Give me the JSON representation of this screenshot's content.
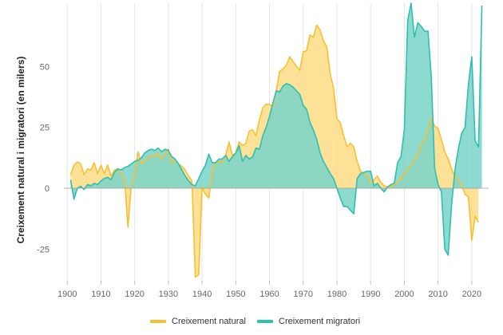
{
  "chart_data": {
    "type": "area",
    "title": "",
    "xlabel": "",
    "ylabel": "Creixement natural i migratori (en milers)",
    "xlim": [
      1899,
      2025
    ],
    "ylim": [
      -38,
      76
    ],
    "x_ticks": [
      1900,
      1910,
      1920,
      1930,
      1940,
      1950,
      1960,
      1970,
      1980,
      1990,
      2000,
      2010,
      2020
    ],
    "y_ticks": [
      -25,
      0,
      25,
      50
    ],
    "y_tick_labels": [
      "-25",
      "0",
      "25",
      "50"
    ],
    "grid": "vertical",
    "legend_position": "bottom",
    "series": [
      {
        "name": "Creixement natural",
        "color": "#f7c030",
        "fill": "#fbdc85",
        "points": [
          [
            1901,
            5.5
          ],
          [
            1902,
            9.5
          ],
          [
            1903,
            10.8
          ],
          [
            1904,
            10
          ],
          [
            1905,
            5.5
          ],
          [
            1906,
            8
          ],
          [
            1907,
            7.5
          ],
          [
            1908,
            10.5
          ],
          [
            1909,
            6
          ],
          [
            1910,
            9.5
          ],
          [
            1911,
            6
          ],
          [
            1912,
            9.5
          ],
          [
            1913,
            5
          ],
          [
            1914,
            7.5
          ],
          [
            1915,
            7.8
          ],
          [
            1916,
            6
          ],
          [
            1917,
            4
          ],
          [
            1918,
            -16
          ],
          [
            1919,
            1
          ],
          [
            1920,
            6
          ],
          [
            1921,
            15
          ],
          [
            1922,
            10
          ],
          [
            1923,
            11
          ],
          [
            1924,
            12.5
          ],
          [
            1925,
            13.5
          ],
          [
            1926,
            13
          ],
          [
            1927,
            14.5
          ],
          [
            1928,
            12
          ],
          [
            1929,
            14
          ],
          [
            1930,
            16
          ],
          [
            1931,
            10.5
          ],
          [
            1932,
            11.5
          ],
          [
            1933,
            10
          ],
          [
            1934,
            9
          ],
          [
            1935,
            7.5
          ],
          [
            1936,
            5
          ],
          [
            1937,
            3
          ],
          [
            1938,
            -36.5
          ],
          [
            1939,
            -35.5
          ],
          [
            1940,
            0.5
          ],
          [
            1941,
            -2.5
          ],
          [
            1942,
            -4
          ],
          [
            1943,
            7.5
          ],
          [
            1944,
            10.5
          ],
          [
            1945,
            11
          ],
          [
            1946,
            10.5
          ],
          [
            1947,
            13.5
          ],
          [
            1948,
            19
          ],
          [
            1949,
            13.5
          ],
          [
            1950,
            14.5
          ],
          [
            1951,
            19
          ],
          [
            1952,
            17.5
          ],
          [
            1953,
            18.5
          ],
          [
            1954,
            23.5
          ],
          [
            1955,
            24
          ],
          [
            1956,
            21.5
          ],
          [
            1957,
            28
          ],
          [
            1958,
            33
          ],
          [
            1959,
            34.5
          ],
          [
            1960,
            34.5
          ],
          [
            1961,
            33.5
          ],
          [
            1962,
            40
          ],
          [
            1963,
            48
          ],
          [
            1964,
            49
          ],
          [
            1965,
            50.5
          ],
          [
            1966,
            54
          ],
          [
            1967,
            52
          ],
          [
            1968,
            50
          ],
          [
            1969,
            48.5
          ],
          [
            1970,
            56
          ],
          [
            1971,
            56.5
          ],
          [
            1972,
            63
          ],
          [
            1973,
            62
          ],
          [
            1974,
            67
          ],
          [
            1975,
            65
          ],
          [
            1976,
            60.5
          ],
          [
            1977,
            58
          ],
          [
            1978,
            47
          ],
          [
            1979,
            41
          ],
          [
            1980,
            28.5
          ],
          [
            1981,
            27
          ],
          [
            1982,
            21.5
          ],
          [
            1983,
            17
          ],
          [
            1984,
            18.5
          ],
          [
            1985,
            17
          ],
          [
            1986,
            11
          ],
          [
            1987,
            7
          ],
          [
            1988,
            6
          ],
          [
            1989,
            5.5
          ],
          [
            1990,
            2
          ],
          [
            1991,
            3.5
          ],
          [
            1992,
            5
          ],
          [
            1993,
            2.5
          ],
          [
            1994,
            1
          ],
          [
            1995,
            0.5
          ],
          [
            1996,
            0.8
          ],
          [
            1997,
            1.5
          ],
          [
            1998,
            2.5
          ],
          [
            1999,
            4
          ],
          [
            2000,
            6
          ],
          [
            2001,
            8
          ],
          [
            2002,
            9.5
          ],
          [
            2003,
            12
          ],
          [
            2004,
            14
          ],
          [
            2005,
            18.5
          ],
          [
            2006,
            19.5
          ],
          [
            2007,
            24.5
          ],
          [
            2008,
            29
          ],
          [
            2009,
            25.5
          ],
          [
            2010,
            24.5
          ],
          [
            2011,
            20
          ],
          [
            2012,
            15
          ],
          [
            2013,
            12
          ],
          [
            2014,
            8
          ],
          [
            2015,
            5
          ],
          [
            2016,
            3.5
          ],
          [
            2017,
            1.5
          ],
          [
            2018,
            -2.5
          ],
          [
            2019,
            -3.5
          ],
          [
            2020,
            -21.5
          ],
          [
            2021,
            -11.5
          ],
          [
            2022,
            -14
          ]
        ]
      },
      {
        "name": "Creixement migratori",
        "color": "#2fbfb0",
        "fill": "#79d4c9",
        "points": [
          [
            1901,
            3.5
          ],
          [
            1902,
            -4.5
          ],
          [
            1903,
            0
          ],
          [
            1904,
            0.8
          ],
          [
            1905,
            -0.5
          ],
          [
            1906,
            1.5
          ],
          [
            1907,
            1
          ],
          [
            1908,
            2
          ],
          [
            1909,
            1.5
          ],
          [
            1910,
            3
          ],
          [
            1911,
            4
          ],
          [
            1912,
            4.5
          ],
          [
            1913,
            3.5
          ],
          [
            1914,
            6.5
          ],
          [
            1915,
            8
          ],
          [
            1916,
            7.5
          ],
          [
            1917,
            8.5
          ],
          [
            1918,
            9
          ],
          [
            1919,
            10
          ],
          [
            1920,
            11
          ],
          [
            1921,
            11.5
          ],
          [
            1922,
            12.5
          ],
          [
            1923,
            14.5
          ],
          [
            1924,
            15.5
          ],
          [
            1925,
            16
          ],
          [
            1926,
            15.5
          ],
          [
            1927,
            16.5
          ],
          [
            1928,
            15
          ],
          [
            1929,
            16
          ],
          [
            1930,
            15.5
          ],
          [
            1931,
            13
          ],
          [
            1932,
            12
          ],
          [
            1933,
            10
          ],
          [
            1934,
            7.5
          ],
          [
            1935,
            5
          ],
          [
            1936,
            3
          ],
          [
            1937,
            1.5
          ],
          [
            1938,
            1
          ],
          [
            1939,
            4
          ],
          [
            1940,
            7
          ],
          [
            1941,
            9.5
          ],
          [
            1942,
            14
          ],
          [
            1943,
            10.5
          ],
          [
            1944,
            10.5
          ],
          [
            1945,
            12
          ],
          [
            1946,
            12
          ],
          [
            1947,
            13.5
          ],
          [
            1948,
            11
          ],
          [
            1949,
            13
          ],
          [
            1950,
            14.5
          ],
          [
            1951,
            17.5
          ],
          [
            1952,
            11
          ],
          [
            1953,
            13.5
          ],
          [
            1954,
            12
          ],
          [
            1955,
            13
          ],
          [
            1956,
            16.5
          ],
          [
            1957,
            16
          ],
          [
            1958,
            21.5
          ],
          [
            1959,
            25
          ],
          [
            1960,
            29.5
          ],
          [
            1961,
            35
          ],
          [
            1962,
            40
          ],
          [
            1963,
            39.5
          ],
          [
            1964,
            42
          ],
          [
            1965,
            43
          ],
          [
            1966,
            42.5
          ],
          [
            1967,
            41.5
          ],
          [
            1968,
            40
          ],
          [
            1969,
            38.5
          ],
          [
            1970,
            34
          ],
          [
            1971,
            32.5
          ],
          [
            1972,
            27
          ],
          [
            1973,
            24
          ],
          [
            1974,
            20
          ],
          [
            1975,
            14.5
          ],
          [
            1976,
            11
          ],
          [
            1977,
            8.5
          ],
          [
            1978,
            6
          ],
          [
            1979,
            4
          ],
          [
            1980,
            0
          ],
          [
            1981,
            -4
          ],
          [
            1982,
            -7.5
          ],
          [
            1983,
            -7.5
          ],
          [
            1984,
            -9
          ],
          [
            1985,
            -10.5
          ],
          [
            1986,
            4
          ],
          [
            1987,
            6
          ],
          [
            1988,
            6.5
          ],
          [
            1989,
            7
          ],
          [
            1990,
            7
          ],
          [
            1991,
            1
          ],
          [
            1992,
            2
          ],
          [
            1993,
            0
          ],
          [
            1994,
            -1.5
          ],
          [
            1995,
            0.5
          ],
          [
            1996,
            1.5
          ],
          [
            1997,
            2
          ],
          [
            1998,
            10.5
          ],
          [
            1999,
            13
          ],
          [
            2000,
            24
          ],
          [
            2001,
            69
          ],
          [
            2002,
            76
          ],
          [
            2003,
            62
          ],
          [
            2004,
            68
          ],
          [
            2005,
            66.5
          ],
          [
            2006,
            64.5
          ],
          [
            2007,
            64.5
          ],
          [
            2008,
            45.5
          ],
          [
            2009,
            8
          ],
          [
            2010,
            1.5
          ],
          [
            2011,
            -1.5
          ],
          [
            2012,
            -25
          ],
          [
            2013,
            -27.5
          ],
          [
            2014,
            -7
          ],
          [
            2015,
            7.5
          ],
          [
            2016,
            16
          ],
          [
            2017,
            22.5
          ],
          [
            2018,
            25
          ],
          [
            2019,
            42.5
          ],
          [
            2020,
            54
          ],
          [
            2021,
            19.5
          ],
          [
            2022,
            17
          ],
          [
            2023,
            75
          ]
        ]
      }
    ]
  }
}
